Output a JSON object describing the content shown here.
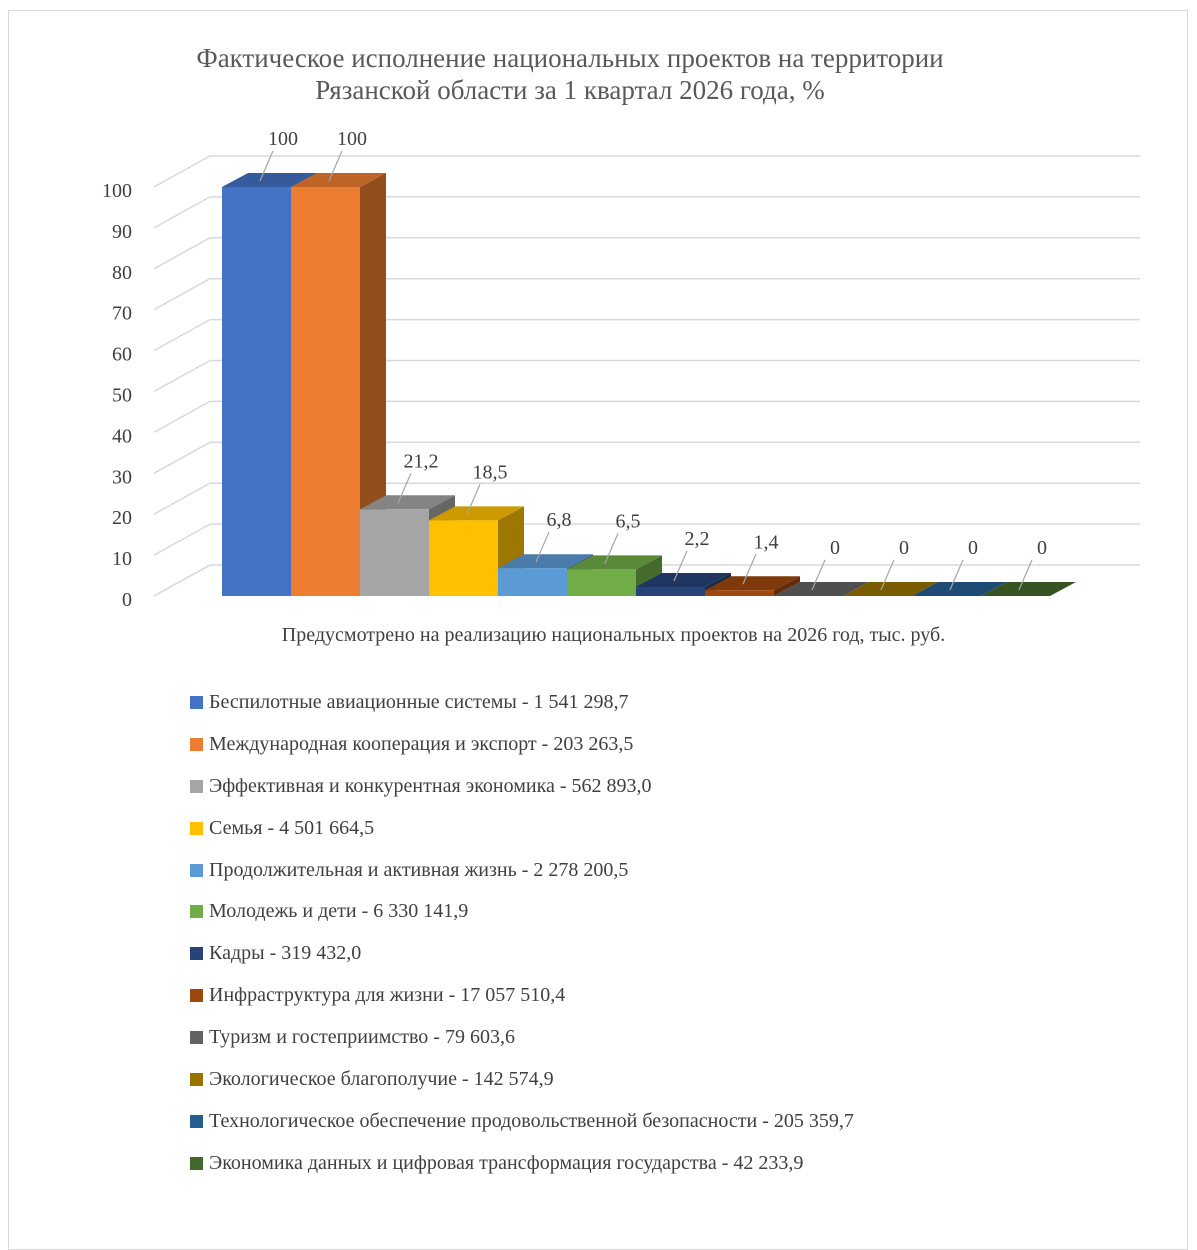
{
  "chart_data": {
    "type": "bar",
    "title": "Фактическое исполнение национальных проектов на территории Рязанской области за 1 квартал 2026 года, %",
    "title_lines": [
      "Фактическое исполнение национальных проектов на территории",
      "Рязанской области за 1 квартал 2026 года, %"
    ],
    "xlabel": "Предусмотрено на реализацию национальных проектов на 2026 год, тыс. руб.",
    "ylabel": "",
    "ylim": [
      0,
      100
    ],
    "y_ticks": [
      "0",
      "10",
      "20",
      "30",
      "40",
      "50",
      "60",
      "70",
      "80",
      "90",
      "100"
    ],
    "grid": true,
    "legend_position": "bottom",
    "series": [
      {
        "name": "Беспилотные авиационные системы - 1 541 298,7",
        "value": 100,
        "label": "100",
        "color": "#4472c4"
      },
      {
        "name": "Международная кооперация и экспорт - 203 263,5",
        "value": 100,
        "label": "100",
        "color": "#ed7d31"
      },
      {
        "name": "Эффективная и конкурентная экономика - 562 893,0",
        "value": 21.2,
        "label": "21,2",
        "color": "#a5a5a5"
      },
      {
        "name": "Семья - 4 501 664,5",
        "value": 18.5,
        "label": "18,5",
        "color": "#ffc000"
      },
      {
        "name": "Продолжительная и активная жизнь - 2 278 200,5",
        "value": 6.8,
        "label": "6,8",
        "color": "#5b9bd5"
      },
      {
        "name": "Молодежь и дети - 6 330 141,9",
        "value": 6.5,
        "label": "6,5",
        "color": "#70ad47"
      },
      {
        "name": "Кадры - 319 432,0",
        "value": 2.2,
        "label": "2,2",
        "color": "#264478"
      },
      {
        "name": "Инфраструктура для жизни - 17 057 510,4",
        "value": 1.4,
        "label": "1,4",
        "color": "#9e480e"
      },
      {
        "name": "Туризм и гостеприимство - 79 603,6",
        "value": 0,
        "label": "0",
        "color": "#636363"
      },
      {
        "name": "Экологическое благополучие - 142 574,9",
        "value": 0,
        "label": "0",
        "color": "#997300"
      },
      {
        "name": "Технологическое обеспечение продовольственной безопасности - 205 359,7",
        "value": 0,
        "label": "0",
        "color": "#255e91"
      },
      {
        "name": "Экономика данных и цифровая трансформация государства - 42 233,9",
        "value": 0,
        "label": "0",
        "color": "#43682b"
      }
    ]
  }
}
